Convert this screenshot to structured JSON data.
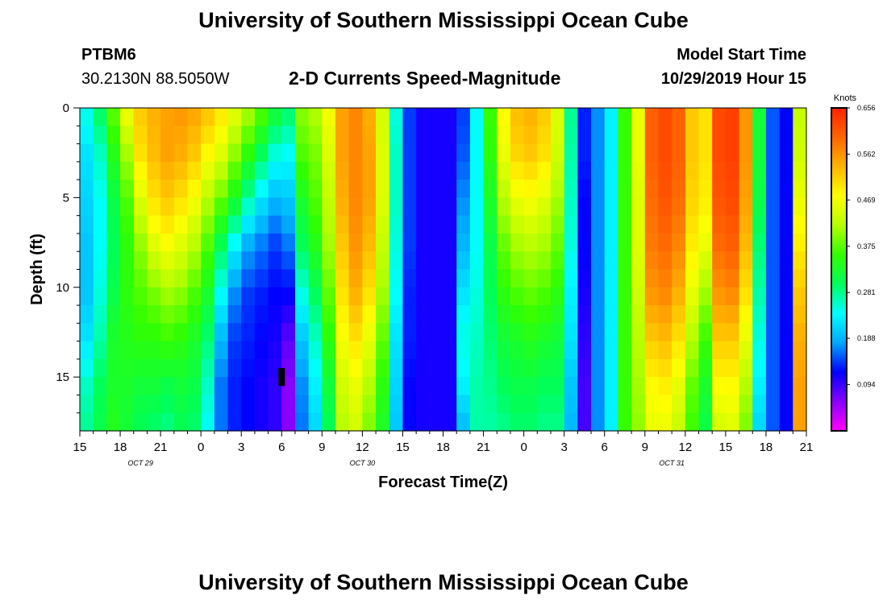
{
  "header": {
    "title": "University of Southern Mississippi Ocean Cube",
    "station_id": "PTBM6",
    "station_coords": "30.2130N 88.5050W",
    "chart_title": "2-D Currents Speed-Magnitude",
    "model_start_label": "Model Start Time",
    "model_start_value": "10/29/2019 Hour 15"
  },
  "footer": {
    "title": "University of Southern Mississippi Ocean Cube"
  },
  "chart_data": {
    "type": "heatmap",
    "title": "2-D Currents Speed-Magnitude",
    "xlabel": "Forecast Time(Z)",
    "ylabel": "Depth (ft)",
    "x_unit": "forecast hours from 10/29/2019 15Z",
    "xlim": [
      0,
      54
    ],
    "ylim": [
      0,
      18
    ],
    "y_inverted": true,
    "x_ticks": [
      {
        "pos": 0,
        "label": "15"
      },
      {
        "pos": 3,
        "label": "18"
      },
      {
        "pos": 6,
        "label": "21"
      },
      {
        "pos": 9,
        "label": "0"
      },
      {
        "pos": 12,
        "label": "3"
      },
      {
        "pos": 15,
        "label": "6"
      },
      {
        "pos": 18,
        "label": "9"
      },
      {
        "pos": 21,
        "label": "12"
      },
      {
        "pos": 24,
        "label": "15"
      },
      {
        "pos": 27,
        "label": "18"
      },
      {
        "pos": 30,
        "label": "21"
      },
      {
        "pos": 33,
        "label": "0"
      },
      {
        "pos": 36,
        "label": "3"
      },
      {
        "pos": 39,
        "label": "6"
      },
      {
        "pos": 42,
        "label": "9"
      },
      {
        "pos": 45,
        "label": "12"
      },
      {
        "pos": 48,
        "label": "15"
      },
      {
        "pos": 51,
        "label": "18"
      },
      {
        "pos": 54,
        "label": "21"
      }
    ],
    "date_labels": [
      {
        "pos": 4.5,
        "label": "OCT 29"
      },
      {
        "pos": 21,
        "label": "OCT 30"
      },
      {
        "pos": 44,
        "label": "OCT 31"
      }
    ],
    "y_ticks": [
      {
        "value": 0,
        "label": "0"
      },
      {
        "value": 5,
        "label": "5"
      },
      {
        "value": 10,
        "label": "10"
      },
      {
        "value": 15,
        "label": "15"
      }
    ],
    "colorbar": {
      "unit": "Knots",
      "min": 0,
      "max": 0.656,
      "labels": [
        "0.656",
        "0.562",
        "0.469",
        "0.375",
        "0.281",
        "0.188",
        "0.094"
      ],
      "label_values": [
        0.656,
        0.562,
        0.469,
        0.375,
        0.281,
        0.188,
        0.094
      ],
      "colors": [
        "#ff00ff",
        "#8a00ff",
        "#0000ff",
        "#00a8ff",
        "#00ffff",
        "#00ff5a",
        "#32ff00",
        "#b4ff00",
        "#ffff00",
        "#ffb400",
        "#ff6400",
        "#ff2200"
      ]
    },
    "marker": {
      "x": 15,
      "depth": 15,
      "color": "#000000"
    },
    "columns": [
      {
        "x": 0,
        "profile": [
          0.25,
          0.22,
          0.21,
          0.2,
          0.2,
          0.22,
          0.26,
          0.28
        ]
      },
      {
        "x": 1,
        "profile": [
          0.3,
          0.26,
          0.24,
          0.24,
          0.25,
          0.27,
          0.3,
          0.31
        ]
      },
      {
        "x": 2,
        "profile": [
          0.38,
          0.34,
          0.31,
          0.3,
          0.31,
          0.33,
          0.33,
          0.34
        ]
      },
      {
        "x": 3,
        "profile": [
          0.47,
          0.41,
          0.37,
          0.35,
          0.35,
          0.34,
          0.33,
          0.32
        ]
      },
      {
        "x": 4,
        "profile": [
          0.52,
          0.5,
          0.45,
          0.4,
          0.37,
          0.35,
          0.32,
          0.3
        ]
      },
      {
        "x": 5,
        "profile": [
          0.54,
          0.53,
          0.5,
          0.45,
          0.39,
          0.35,
          0.32,
          0.29
        ]
      },
      {
        "x": 6,
        "profile": [
          0.55,
          0.55,
          0.52,
          0.47,
          0.41,
          0.36,
          0.31,
          0.28
        ]
      },
      {
        "x": 7,
        "profile": [
          0.56,
          0.54,
          0.5,
          0.45,
          0.4,
          0.35,
          0.32,
          0.3
        ]
      },
      {
        "x": 8,
        "profile": [
          0.55,
          0.52,
          0.47,
          0.42,
          0.37,
          0.33,
          0.31,
          0.29
        ]
      },
      {
        "x": 9,
        "profile": [
          0.53,
          0.48,
          0.42,
          0.37,
          0.33,
          0.29,
          0.26,
          0.24
        ]
      },
      {
        "x": 10,
        "profile": [
          0.5,
          0.45,
          0.38,
          0.3,
          0.24,
          0.19,
          0.16,
          0.16
        ]
      },
      {
        "x": 11,
        "profile": [
          0.46,
          0.4,
          0.33,
          0.23,
          0.17,
          0.14,
          0.13,
          0.13
        ]
      },
      {
        "x": 12,
        "profile": [
          0.42,
          0.35,
          0.27,
          0.18,
          0.14,
          0.13,
          0.12,
          0.12
        ]
      },
      {
        "x": 13,
        "profile": [
          0.38,
          0.3,
          0.22,
          0.16,
          0.13,
          0.12,
          0.11,
          0.11
        ]
      },
      {
        "x": 14,
        "profile": [
          0.33,
          0.25,
          0.19,
          0.14,
          0.12,
          0.11,
          0.1,
          0.1
        ]
      },
      {
        "x": 15,
        "profile": [
          0.3,
          0.24,
          0.2,
          0.16,
          0.12,
          0.08,
          0.06,
          0.06
        ]
      },
      {
        "x": 16,
        "profile": [
          0.4,
          0.37,
          0.33,
          0.3,
          0.25,
          0.2,
          0.17,
          0.16
        ]
      },
      {
        "x": 17,
        "profile": [
          0.42,
          0.39,
          0.37,
          0.34,
          0.3,
          0.26,
          0.23,
          0.21
        ]
      },
      {
        "x": 18,
        "profile": [
          0.47,
          0.45,
          0.43,
          0.41,
          0.38,
          0.35,
          0.32,
          0.3
        ]
      },
      {
        "x": 19,
        "profile": [
          0.55,
          0.55,
          0.54,
          0.52,
          0.5,
          0.47,
          0.44,
          0.42
        ]
      },
      {
        "x": 20,
        "profile": [
          0.57,
          0.57,
          0.57,
          0.56,
          0.54,
          0.5,
          0.46,
          0.44
        ]
      },
      {
        "x": 21,
        "profile": [
          0.54,
          0.55,
          0.55,
          0.53,
          0.5,
          0.46,
          0.42,
          0.39
        ]
      },
      {
        "x": 22,
        "profile": [
          0.44,
          0.45,
          0.45,
          0.43,
          0.41,
          0.38,
          0.35,
          0.33
        ]
      },
      {
        "x": 23,
        "profile": [
          0.25,
          0.26,
          0.26,
          0.25,
          0.24,
          0.22,
          0.21,
          0.2
        ]
      },
      {
        "x": 24,
        "profile": [
          0.14,
          0.14,
          0.14,
          0.14,
          0.13,
          0.13,
          0.12,
          0.12
        ]
      },
      {
        "x": 25,
        "profile": [
          0.11,
          0.11,
          0.11,
          0.11,
          0.11,
          0.11,
          0.11,
          0.11
        ]
      },
      {
        "x": 26,
        "profile": [
          0.11,
          0.11,
          0.11,
          0.11,
          0.11,
          0.11,
          0.11,
          0.11
        ]
      },
      {
        "x": 27,
        "profile": [
          0.11,
          0.11,
          0.11,
          0.11,
          0.11,
          0.11,
          0.11,
          0.11
        ]
      },
      {
        "x": 28,
        "profile": [
          0.14,
          0.15,
          0.17,
          0.19,
          0.22,
          0.25,
          0.23,
          0.19
        ]
      },
      {
        "x": 29,
        "profile": [
          0.24,
          0.24,
          0.24,
          0.24,
          0.25,
          0.26,
          0.27,
          0.27
        ]
      },
      {
        "x": 30,
        "profile": [
          0.36,
          0.35,
          0.33,
          0.31,
          0.3,
          0.29,
          0.28,
          0.27
        ]
      },
      {
        "x": 31,
        "profile": [
          0.48,
          0.46,
          0.42,
          0.38,
          0.35,
          0.32,
          0.3,
          0.28
        ]
      },
      {
        "x": 32,
        "profile": [
          0.53,
          0.51,
          0.46,
          0.41,
          0.37,
          0.33,
          0.31,
          0.29
        ]
      },
      {
        "x": 33,
        "profile": [
          0.54,
          0.52,
          0.47,
          0.42,
          0.38,
          0.34,
          0.31,
          0.29
        ]
      },
      {
        "x": 34,
        "profile": [
          0.52,
          0.5,
          0.45,
          0.41,
          0.37,
          0.33,
          0.3,
          0.28
        ]
      },
      {
        "x": 35,
        "profile": [
          0.45,
          0.44,
          0.41,
          0.38,
          0.35,
          0.32,
          0.3,
          0.28
        ]
      },
      {
        "x": 36,
        "profile": [
          0.28,
          0.27,
          0.26,
          0.25,
          0.23,
          0.22,
          0.2,
          0.19
        ]
      },
      {
        "x": 37,
        "profile": [
          0.13,
          0.13,
          0.12,
          0.12,
          0.11,
          0.1,
          0.09,
          0.09
        ]
      },
      {
        "x": 38,
        "profile": [
          0.17,
          0.17,
          0.17,
          0.17,
          0.17,
          0.17,
          0.17,
          0.17
        ]
      },
      {
        "x": 39,
        "profile": [
          0.23,
          0.23,
          0.23,
          0.23,
          0.23,
          0.23,
          0.23,
          0.23
        ]
      },
      {
        "x": 40,
        "profile": [
          0.36,
          0.36,
          0.36,
          0.36,
          0.36,
          0.36,
          0.36,
          0.36
        ]
      },
      {
        "x": 41,
        "profile": [
          0.46,
          0.46,
          0.45,
          0.45,
          0.44,
          0.42,
          0.41,
          0.4
        ]
      },
      {
        "x": 42,
        "profile": [
          0.6,
          0.6,
          0.59,
          0.58,
          0.56,
          0.52,
          0.48,
          0.46
        ]
      },
      {
        "x": 43,
        "profile": [
          0.62,
          0.62,
          0.61,
          0.59,
          0.57,
          0.53,
          0.49,
          0.46
        ]
      },
      {
        "x": 44,
        "profile": [
          0.6,
          0.6,
          0.59,
          0.57,
          0.54,
          0.5,
          0.46,
          0.43
        ]
      },
      {
        "x": 45,
        "profile": [
          0.52,
          0.52,
          0.51,
          0.49,
          0.46,
          0.42,
          0.38,
          0.36
        ]
      },
      {
        "x": 46,
        "profile": [
          0.5,
          0.5,
          0.49,
          0.46,
          0.41,
          0.36,
          0.33,
          0.31
        ]
      },
      {
        "x": 47,
        "profile": [
          0.62,
          0.62,
          0.61,
          0.59,
          0.56,
          0.52,
          0.48,
          0.44
        ]
      },
      {
        "x": 48,
        "profile": [
          0.63,
          0.63,
          0.62,
          0.6,
          0.57,
          0.52,
          0.48,
          0.45
        ]
      },
      {
        "x": 49,
        "profile": [
          0.56,
          0.56,
          0.55,
          0.53,
          0.5,
          0.46,
          0.42,
          0.39
        ]
      },
      {
        "x": 50,
        "profile": [
          0.32,
          0.32,
          0.31,
          0.29,
          0.27,
          0.25,
          0.23,
          0.21
        ]
      },
      {
        "x": 51,
        "profile": [
          0.15,
          0.15,
          0.15,
          0.15,
          0.15,
          0.15,
          0.15,
          0.15
        ]
      },
      {
        "x": 52,
        "profile": [
          0.12,
          0.12,
          0.12,
          0.12,
          0.12,
          0.12,
          0.12,
          0.12
        ]
      },
      {
        "x": 53,
        "profile": [
          0.43,
          0.44,
          0.46,
          0.49,
          0.52,
          0.54,
          0.55,
          0.55
        ]
      }
    ]
  }
}
